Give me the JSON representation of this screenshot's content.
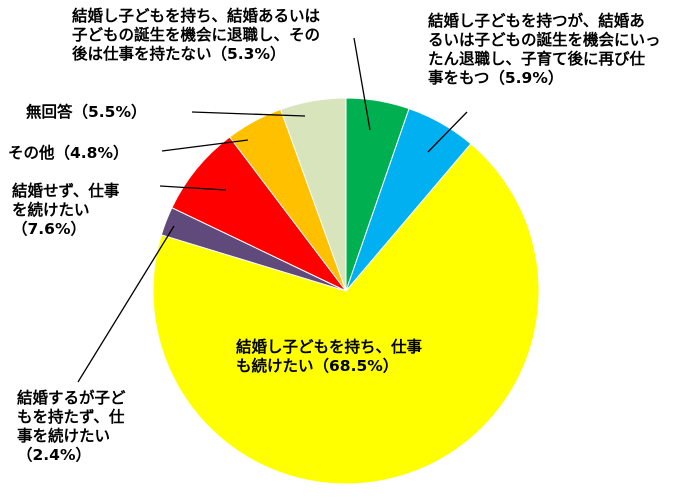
{
  "chart_data": {
    "type": "pie",
    "title": "",
    "start_angle_deg": 0,
    "direction": "clockwise",
    "slices": [
      {
        "label": "結婚し子どもを持ち、結婚あるいは子どもの誕生を機会に退職し、その後は仕事を持たない（5.3%）",
        "value": 5.3,
        "color": "#00b050"
      },
      {
        "label": "結婚し子どもを持つが、結婚あるいは子どもの誕生を機会にいったん退職し、子育て後に再び仕事をもつ（5.9%）",
        "value": 5.9,
        "color": "#00b0f0"
      },
      {
        "label": "結婚し子どもを持ち、仕事も続けたい（68.5%）",
        "value": 68.5,
        "color": "#ffff00"
      },
      {
        "label": "結婚するが子どもを持たず、仕事を続けたい（2.4%）",
        "value": 2.4,
        "color": "#604a7b"
      },
      {
        "label": "結婚せず、仕事を続けたい（7.6%）",
        "value": 7.6,
        "color": "#ff0000"
      },
      {
        "label": "その他（4.8%）",
        "value": 4.8,
        "color": "#ffc000"
      },
      {
        "label": "無回答（5.5%）",
        "value": 5.5,
        "color": "#d8e4bc"
      }
    ]
  },
  "labels": {
    "green": "結婚し子どもを持ち、結婚あるいは\n子どもの誕生を機会に退職し、その\n後は仕事を持たない（5.3%）",
    "blue": "結婚し子どもを持つが、結婚あ\nるいは子どもの誕生を機会にいっ\nたん退職し、子育て後に再び仕\n事をもつ（5.9%）",
    "yellow": "結婚し子どもを持ち、仕事\nも続けたい（68.5%）",
    "purple": "結婚するが子ど\nもを持たず、仕\n事を続けたい\n（2.4%）",
    "red": "結婚せず、仕事\nを続けたい\n（7.6%）",
    "orange": "その他（4.8%）",
    "sage": "無回答（5.5%）"
  }
}
